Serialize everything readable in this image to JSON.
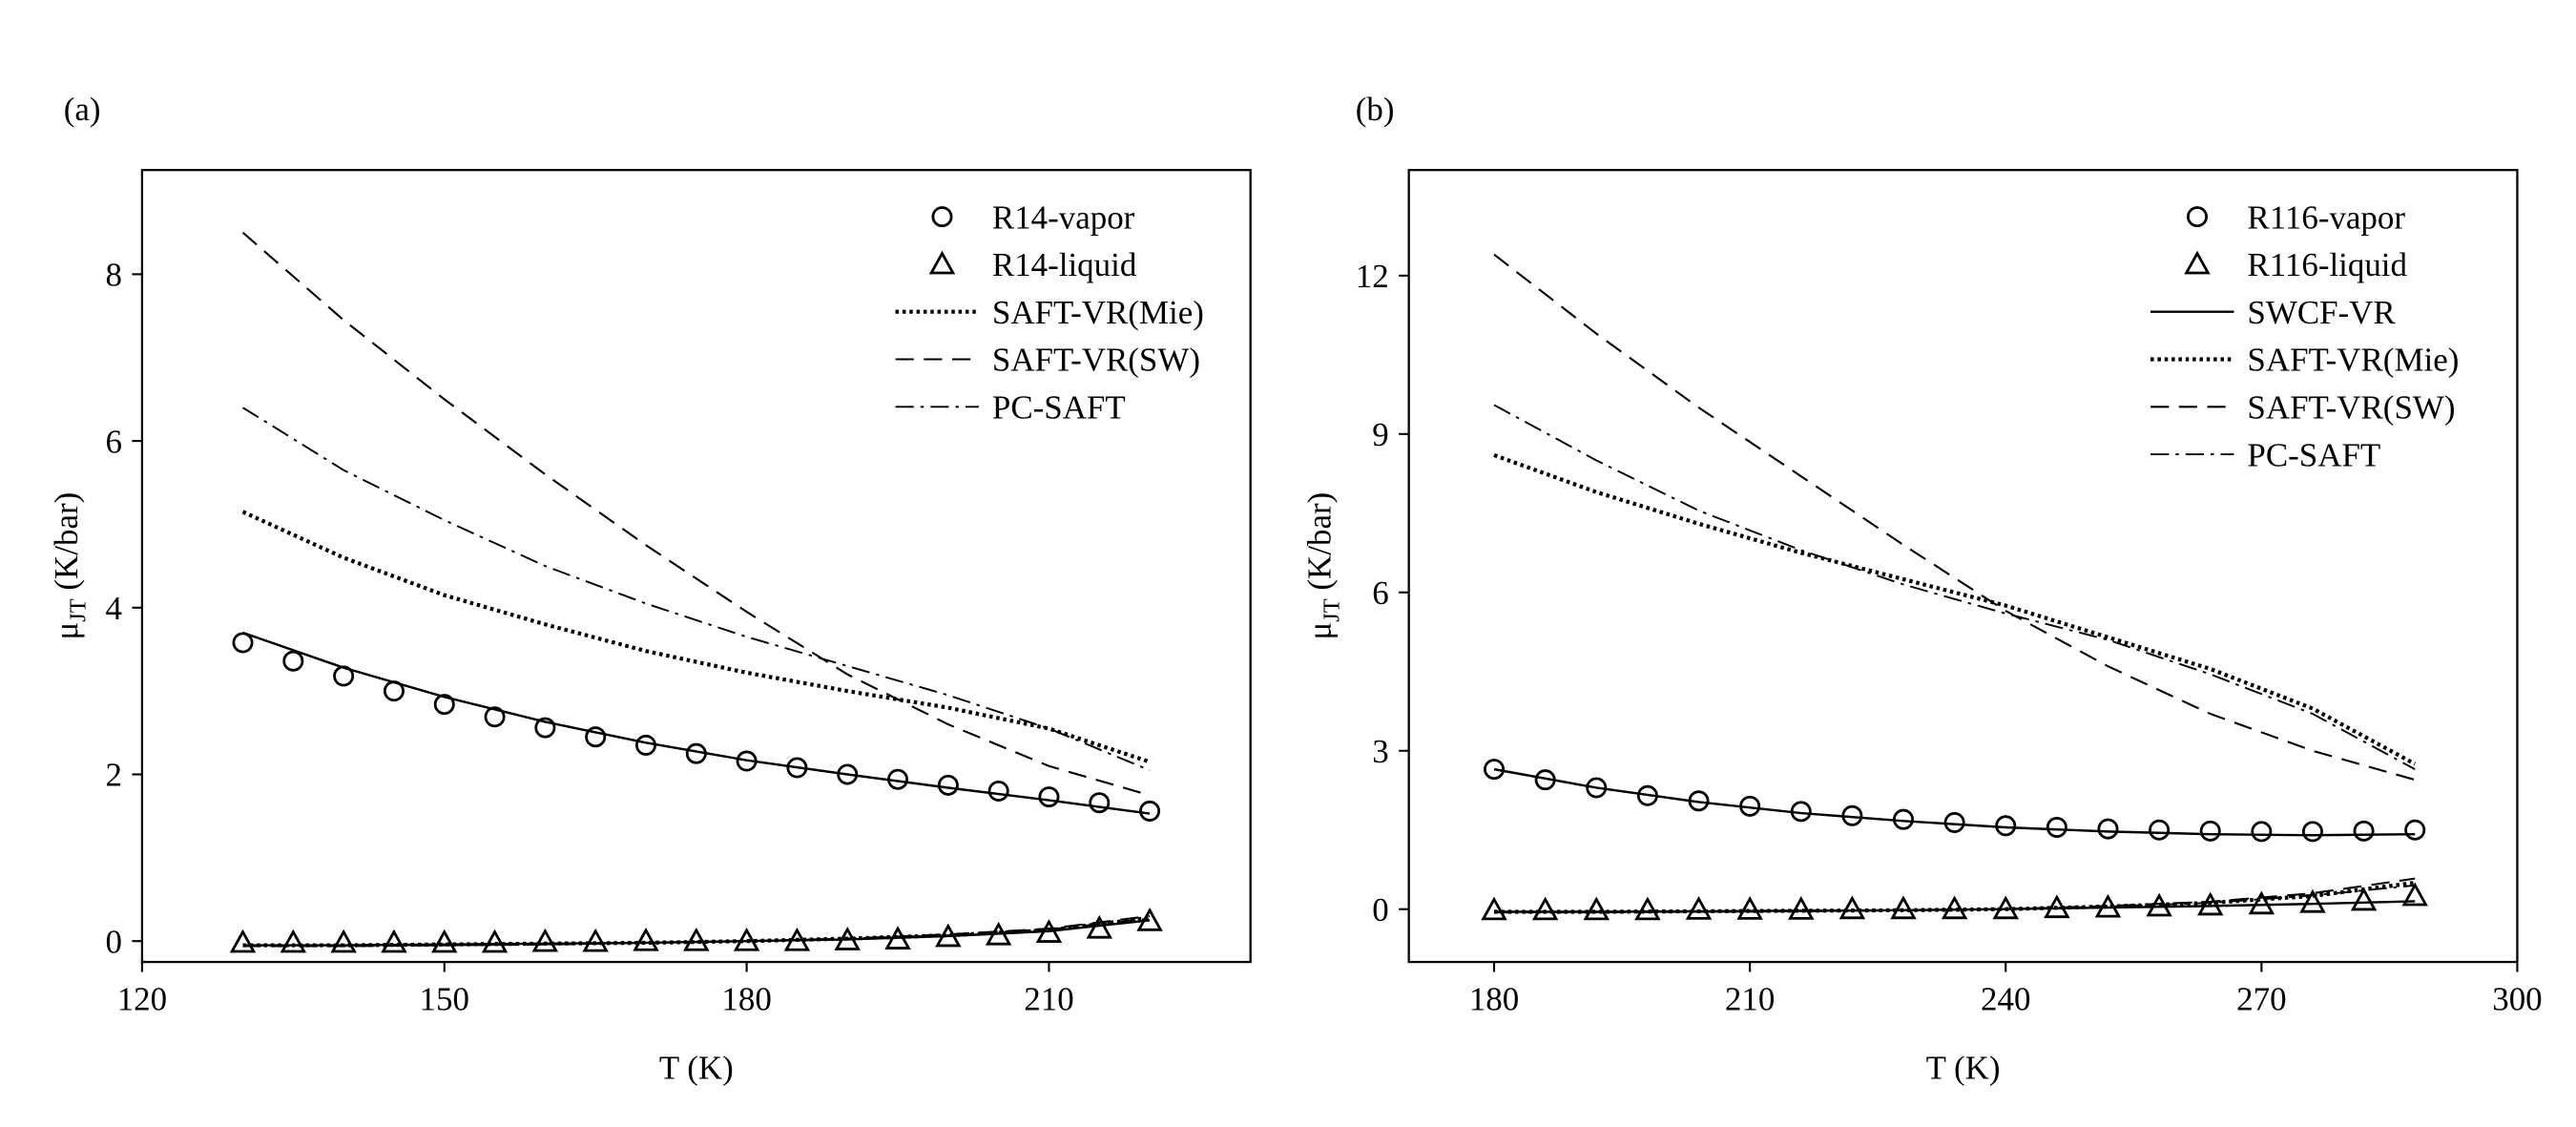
{
  "chart_data": [
    {
      "type": "line",
      "panel_label": "(a)",
      "x_label": "T (K)",
      "y_label": {
        "symbol": "μ",
        "subscript": "JT",
        "unit": "(K/bar)"
      },
      "xlim": [
        120,
        230
      ],
      "xticks": [
        120,
        150,
        180,
        210
      ],
      "ylim": [
        -0.25,
        9.25
      ],
      "yticks": [
        0,
        2,
        4,
        6,
        8
      ],
      "legend": "upper right",
      "color": "#000000",
      "series": [
        {
          "name": "R14-vapor",
          "marker": "circle",
          "x": [
            130,
            135,
            140,
            145,
            150,
            155,
            160,
            165,
            170,
            175,
            180,
            185,
            190,
            195,
            200,
            205,
            210,
            215,
            220
          ],
          "values": [
            3.58,
            3.36,
            3.18,
            3.0,
            2.84,
            2.69,
            2.56,
            2.45,
            2.35,
            2.25,
            2.16,
            2.08,
            2.0,
            1.94,
            1.87,
            1.8,
            1.73,
            1.66,
            1.56
          ]
        },
        {
          "name": "R14-liquid",
          "marker": "triangle",
          "x": [
            130,
            135,
            140,
            145,
            150,
            155,
            160,
            165,
            170,
            175,
            180,
            185,
            190,
            195,
            200,
            205,
            210,
            215,
            220
          ],
          "values": [
            -0.02,
            -0.02,
            -0.02,
            -0.02,
            -0.02,
            -0.02,
            -0.01,
            -0.01,
            0.0,
            0.0,
            0.0,
            0.0,
            0.01,
            0.02,
            0.05,
            0.07,
            0.1,
            0.15,
            0.24
          ]
        },
        {
          "name": "SAFT-VR(Mie)",
          "style": "dotted",
          "x": [
            130,
            140,
            150,
            160,
            170,
            180,
            190,
            200,
            210,
            220
          ],
          "values": [
            5.15,
            4.6,
            4.15,
            3.8,
            3.48,
            3.22,
            3.0,
            2.8,
            2.55,
            2.15
          ]
        },
        {
          "name": "SAFT-VR(SW)",
          "style": "dashed",
          "x": [
            130,
            140,
            150,
            160,
            170,
            180,
            190,
            200,
            210,
            220
          ],
          "values": [
            8.5,
            7.45,
            6.5,
            5.6,
            4.75,
            3.95,
            3.2,
            2.6,
            2.1,
            1.75
          ]
        },
        {
          "name": "PC-SAFT",
          "style": "dashdot",
          "x": [
            130,
            140,
            150,
            160,
            170,
            180,
            190,
            200,
            210,
            220
          ],
          "values": [
            6.4,
            5.65,
            5.05,
            4.5,
            4.05,
            3.65,
            3.3,
            2.95,
            2.55,
            2.05
          ]
        },
        {
          "style": "solid",
          "x": [
            130,
            140,
            150,
            160,
            170,
            180,
            190,
            200,
            210,
            220
          ],
          "values": [
            3.7,
            3.28,
            2.93,
            2.63,
            2.38,
            2.17,
            2.0,
            1.84,
            1.69,
            1.53
          ]
        },
        {
          "style": "solid",
          "x": [
            130,
            140,
            150,
            160,
            170,
            180,
            190,
            200,
            210,
            220
          ],
          "values": [
            -0.05,
            -0.05,
            -0.04,
            -0.03,
            -0.02,
            0.0,
            0.02,
            0.06,
            0.12,
            0.25
          ]
        },
        {
          "style": "dotted",
          "x": [
            130,
            140,
            150,
            160,
            170,
            180,
            190,
            200,
            210,
            220
          ],
          "values": [
            -0.05,
            -0.05,
            -0.04,
            -0.03,
            -0.02,
            0.0,
            0.03,
            0.07,
            0.13,
            0.28
          ]
        },
        {
          "style": "dashed",
          "x": [
            130,
            140,
            150,
            160,
            170,
            180,
            190,
            200,
            210,
            220
          ],
          "values": [
            -0.06,
            -0.06,
            -0.05,
            -0.04,
            -0.02,
            0.0,
            0.03,
            0.08,
            0.15,
            0.3
          ]
        },
        {
          "style": "dashdot",
          "x": [
            130,
            140,
            150,
            160,
            170,
            180,
            190,
            200,
            210,
            220
          ],
          "values": [
            -0.05,
            -0.05,
            -0.05,
            -0.04,
            -0.02,
            0.0,
            0.03,
            0.07,
            0.14,
            0.27
          ]
        }
      ]
    },
    {
      "type": "line",
      "panel_label": "(b)",
      "x_label": "T (K)",
      "y_label": {
        "symbol": "μ",
        "subscript": "JT",
        "unit": "(K/bar)"
      },
      "xlim": [
        170,
        300
      ],
      "xticks": [
        180,
        210,
        240,
        270,
        300
      ],
      "ylim": [
        -1,
        14
      ],
      "yticks": [
        0,
        3,
        6,
        9,
        12
      ],
      "legend": "upper right",
      "color": "#000000",
      "series": [
        {
          "name": "R116-vapor",
          "marker": "circle",
          "x": [
            180,
            186,
            192,
            198,
            204,
            210,
            216,
            222,
            228,
            234,
            240,
            246,
            252,
            258,
            264,
            270,
            276,
            282,
            288
          ],
          "values": [
            2.65,
            2.45,
            2.3,
            2.15,
            2.05,
            1.95,
            1.85,
            1.77,
            1.7,
            1.64,
            1.58,
            1.55,
            1.52,
            1.5,
            1.48,
            1.47,
            1.47,
            1.48,
            1.5
          ]
        },
        {
          "name": "R116-liquid",
          "marker": "triangle",
          "x": [
            180,
            186,
            192,
            198,
            204,
            210,
            216,
            222,
            228,
            234,
            240,
            246,
            252,
            258,
            264,
            270,
            276,
            282,
            288
          ],
          "values": [
            -0.02,
            -0.02,
            -0.02,
            -0.02,
            -0.01,
            -0.01,
            -0.01,
            0.0,
            0.0,
            0.0,
            0.0,
            0.02,
            0.03,
            0.05,
            0.07,
            0.09,
            0.12,
            0.16,
            0.25
          ]
        },
        {
          "name": "SWCF-VR",
          "style": "solid",
          "x": [
            180,
            192,
            204,
            216,
            228,
            240,
            252,
            264,
            276,
            288
          ],
          "values": [
            2.65,
            2.3,
            2.03,
            1.82,
            1.67,
            1.55,
            1.47,
            1.42,
            1.4,
            1.42
          ]
        },
        {
          "name": "SAFT-VR(Mie)",
          "style": "dotted",
          "x": [
            180,
            192,
            204,
            216,
            228,
            240,
            252,
            264,
            276,
            288
          ],
          "values": [
            8.6,
            7.9,
            7.3,
            6.75,
            6.25,
            5.75,
            5.15,
            4.55,
            3.8,
            2.75
          ]
        },
        {
          "name": "SAFT-VR(SW)",
          "style": "dashed",
          "x": [
            180,
            192,
            204,
            216,
            228,
            240,
            252,
            264,
            276,
            288
          ],
          "values": [
            12.4,
            10.9,
            9.5,
            8.2,
            6.9,
            5.65,
            4.6,
            3.7,
            3.0,
            2.45
          ]
        },
        {
          "name": "PC-SAFT",
          "style": "dashdot",
          "x": [
            180,
            192,
            204,
            216,
            228,
            240,
            252,
            264,
            276,
            288
          ],
          "values": [
            9.55,
            8.5,
            7.55,
            6.8,
            6.15,
            5.6,
            5.1,
            4.45,
            3.7,
            2.65
          ]
        },
        {
          "style": "solid",
          "x": [
            180,
            192,
            204,
            216,
            228,
            240,
            252,
            264,
            276,
            288
          ],
          "values": [
            -0.05,
            -0.05,
            -0.04,
            -0.03,
            -0.02,
            0.0,
            0.03,
            0.06,
            0.1,
            0.15
          ]
        },
        {
          "style": "dotted",
          "x": [
            180,
            192,
            204,
            216,
            228,
            240,
            252,
            264,
            276,
            288
          ],
          "values": [
            -0.05,
            -0.05,
            -0.04,
            -0.03,
            -0.02,
            0.0,
            0.05,
            0.12,
            0.25,
            0.5
          ]
        },
        {
          "style": "dashed",
          "x": [
            180,
            192,
            204,
            216,
            228,
            240,
            252,
            264,
            276,
            288
          ],
          "values": [
            -0.06,
            -0.06,
            -0.05,
            -0.04,
            -0.02,
            0.0,
            0.06,
            0.14,
            0.3,
            0.58
          ]
        },
        {
          "style": "dashdot",
          "x": [
            180,
            192,
            204,
            216,
            228,
            240,
            252,
            264,
            276,
            288
          ],
          "values": [
            -0.05,
            -0.05,
            -0.05,
            -0.04,
            -0.02,
            0.0,
            0.05,
            0.12,
            0.26,
            0.45
          ]
        }
      ]
    }
  ]
}
